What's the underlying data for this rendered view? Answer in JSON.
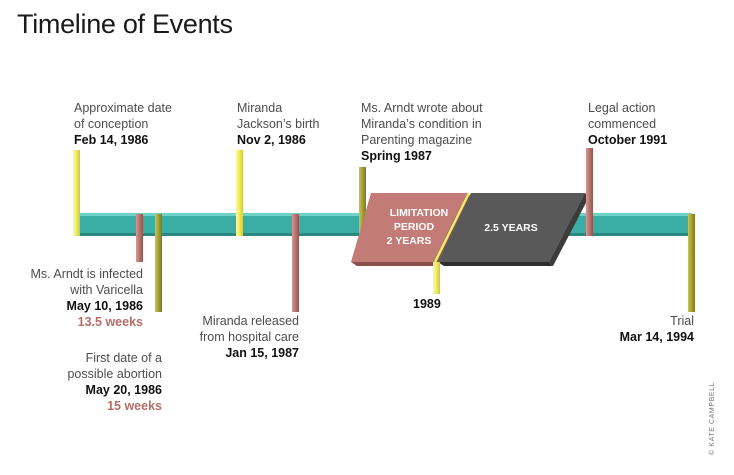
{
  "title": "Timeline of Events",
  "credit": "© KATE CAMPBELL",
  "colors": {
    "bar": "#3aaea4",
    "yellow_marker": "#f2ee6c",
    "olive_marker": "#a9a434",
    "red_marker": "#b97873",
    "limitation_box": "#c27b76",
    "years_box": "#585858"
  },
  "events": [
    {
      "id": "conception",
      "lines": [
        "Approximate date",
        "of conception"
      ],
      "date": "Feb 14, 1986"
    },
    {
      "id": "infected",
      "lines": [
        "Ms. Arndt is infected",
        "with Varicella"
      ],
      "date": "May 10, 1986",
      "weeks": "13.5 weeks"
    },
    {
      "id": "abortion",
      "lines": [
        "First date of a",
        "possible abortion"
      ],
      "date": "May 20, 1986",
      "weeks": "15 weeks"
    },
    {
      "id": "birth",
      "lines": [
        "Miranda",
        "Jackson’s birth"
      ],
      "date": "Nov 2, 1986"
    },
    {
      "id": "released",
      "lines": [
        "Miranda released",
        "from hospital care"
      ],
      "date": "Jan 15, 1987"
    },
    {
      "id": "parenting",
      "lines": [
        "Ms. Arndt wrote about",
        "Miranda’s condition in",
        "Parenting magazine"
      ],
      "date": "Spring 1987"
    },
    {
      "id": "y1989",
      "lines": [],
      "date": "1989"
    },
    {
      "id": "legal",
      "lines": [
        "Legal action",
        "commenced"
      ],
      "date": "October 1991"
    },
    {
      "id": "trial",
      "lines": [
        "Trial"
      ],
      "date": "Mar 14, 1994"
    }
  ],
  "periods": {
    "limitation": [
      "LIMITATION",
      "PERIOD",
      "2 YEARS"
    ],
    "years": "2.5 YEARS"
  }
}
